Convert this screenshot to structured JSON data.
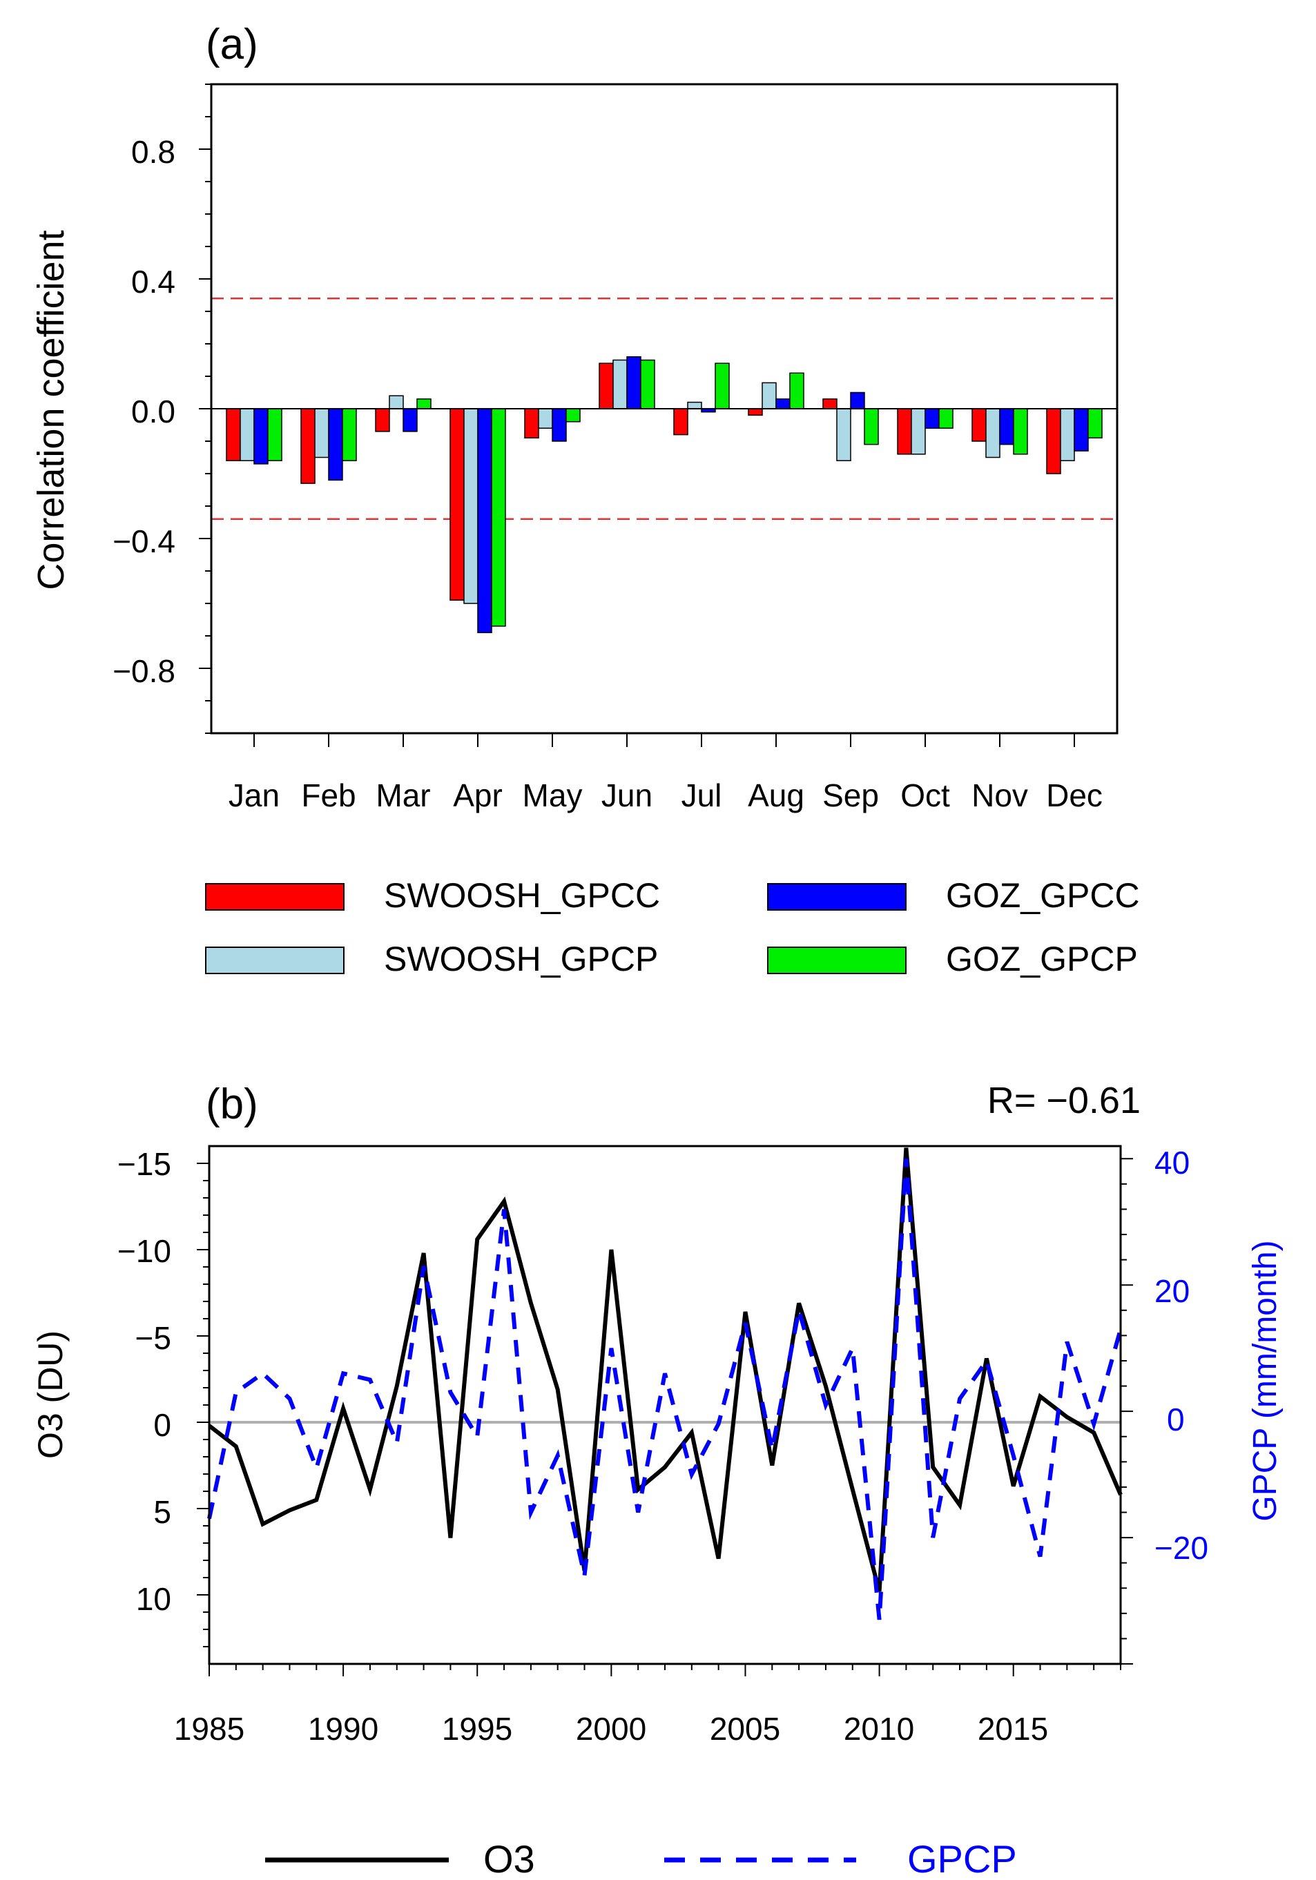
{
  "chart_data": [
    {
      "type": "bar",
      "panel_label": "(a)",
      "title": "",
      "xlabel": "",
      "ylabel": "Correlation coefficient",
      "ylim": [
        -1.0,
        1.0
      ],
      "yticks": [
        -0.8,
        -0.4,
        0.0,
        0.4,
        0.8
      ],
      "ytick_labels": [
        "−0.8",
        "−0.4",
        "0.0",
        "0.4",
        "0.8"
      ],
      "categories": [
        "Jan",
        "Feb",
        "Mar",
        "Apr",
        "May",
        "Jun",
        "Jul",
        "Aug",
        "Sep",
        "Oct",
        "Nov",
        "Dec"
      ],
      "significance_lines": [
        0.34,
        -0.34
      ],
      "significance_color": "#e83030",
      "series": [
        {
          "name": "SWOOSH_GPCC",
          "color": "#ff0000",
          "values": [
            -0.16,
            -0.23,
            -0.07,
            -0.59,
            -0.09,
            0.14,
            -0.08,
            -0.02,
            0.03,
            -0.14,
            -0.1,
            -0.2
          ]
        },
        {
          "name": "SWOOSH_GPCP",
          "color": "#add8e6",
          "values": [
            -0.16,
            -0.15,
            0.04,
            -0.6,
            -0.06,
            0.15,
            0.02,
            0.08,
            -0.16,
            -0.14,
            -0.15,
            -0.16
          ]
        },
        {
          "name": "GOZ_GPCC",
          "color": "#0000ff",
          "values": [
            -0.17,
            -0.22,
            -0.07,
            -0.69,
            -0.1,
            0.16,
            -0.01,
            0.03,
            0.05,
            -0.06,
            -0.11,
            -0.13
          ]
        },
        {
          "name": "GOZ_GPCP",
          "color": "#00ee00",
          "values": [
            -0.16,
            -0.16,
            0.03,
            -0.67,
            -0.04,
            0.15,
            0.14,
            0.11,
            -0.11,
            -0.06,
            -0.14,
            -0.09
          ]
        }
      ]
    },
    {
      "type": "line",
      "panel_label": "(b)",
      "annotation": "R= −0.61",
      "xlabel": "",
      "x": [
        1985,
        1986,
        1987,
        1988,
        1989,
        1990,
        1991,
        1992,
        1993,
        1994,
        1995,
        1996,
        1997,
        1998,
        1999,
        2000,
        2001,
        2002,
        2003,
        2004,
        2005,
        2006,
        2007,
        2008,
        2009,
        2010,
        2011,
        2012,
        2013,
        2014,
        2015,
        2016,
        2017,
        2018,
        2019
      ],
      "xlim": [
        1985,
        2019
      ],
      "xticks": [
        1985,
        1990,
        1995,
        2000,
        2005,
        2010,
        2015
      ],
      "xtick_labels": [
        "1985",
        "1990",
        "1995",
        "2000",
        "2005",
        "2010",
        "2015"
      ],
      "left_axis": {
        "label": "O3 (DU)",
        "reversed": true,
        "range": [
          -16,
          14
        ],
        "ticks": [
          -15,
          -10,
          -5,
          0,
          5,
          10
        ],
        "tick_labels": [
          "−15",
          "−10",
          "−5",
          "0",
          "5",
          "10"
        ]
      },
      "right_axis": {
        "label": "GPCP (mm/month)",
        "color": "#0000ff",
        "range": [
          -40,
          42
        ],
        "ticks": [
          -20,
          0,
          20,
          40
        ],
        "tick_labels": [
          "−20",
          "0",
          "20",
          "40"
        ]
      },
      "zero_line_color": "#b0b0b0",
      "series": [
        {
          "name": "O3",
          "axis": "left",
          "color": "#000000",
          "style": "solid",
          "values": [
            0.2,
            1.4,
            5.9,
            5.1,
            4.5,
            -0.8,
            3.9,
            -2.1,
            -9.8,
            6.7,
            -10.6,
            -12.8,
            -6.9,
            -1.9,
            8.6,
            -10.0,
            3.9,
            2.6,
            0.6,
            7.9,
            -6.4,
            2.5,
            -6.9,
            -2.1,
            3.9,
            9.8,
            -15.9,
            2.6,
            4.8,
            -3.7,
            3.7,
            -1.5,
            -0.3,
            0.6,
            4.2
          ]
        },
        {
          "name": "GPCP",
          "axis": "right",
          "color": "#0000ff",
          "style": "dashed",
          "values": [
            -17.0,
            3.0,
            6.0,
            2.0,
            -9.0,
            6.0,
            5.0,
            -5.0,
            23.0,
            3.0,
            -4.0,
            32.0,
            -16.0,
            -7.0,
            -26.0,
            10.0,
            -16.0,
            6.0,
            -10.0,
            -2.0,
            14.0,
            -6.0,
            16.0,
            1.0,
            10.0,
            -33.0,
            40.0,
            -20.0,
            2.0,
            8.0,
            -7.0,
            -23.0,
            11.0,
            -2.0,
            13.0
          ]
        }
      ]
    }
  ],
  "legend_a_items": [
    "SWOOSH_GPCC",
    "SWOOSH_GPCP",
    "GOZ_GPCC",
    "GOZ_GPCP"
  ],
  "legend_b_items": [
    "O3",
    "GPCP"
  ]
}
